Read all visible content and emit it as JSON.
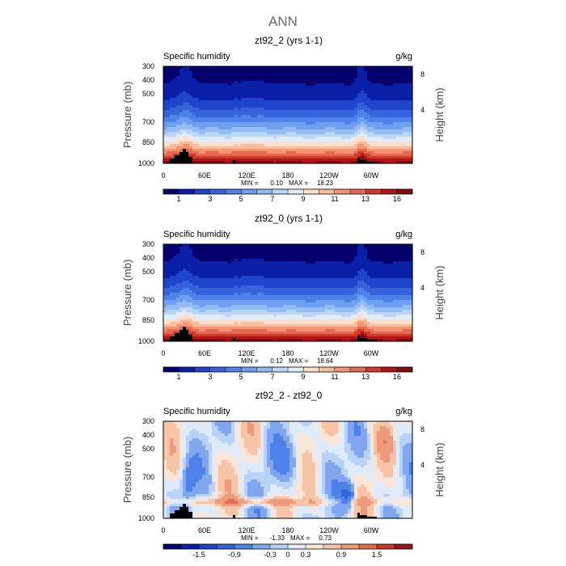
{
  "figure_title": "ANN",
  "chart_data": [
    {
      "type": "heatmap",
      "title": "zt92_2 (yrs 1-1)",
      "variable": "Specific humidity",
      "units": "g/kg",
      "ylabel": "Pressure (mb)",
      "ylabel_right": "Height (km)",
      "yticks": [
        "300",
        "400",
        "500",
        "700",
        "850",
        "1000"
      ],
      "yticks_right": [
        "8",
        "4"
      ],
      "xticks": [
        "0",
        "60E",
        "120E",
        "180",
        "120W",
        "60W"
      ],
      "min_label": "MIN =",
      "min_value": "0.10",
      "max_label": "MAX =",
      "max_value": "18.23",
      "colorbar_labels": [
        "1",
        "3",
        "5",
        "7",
        "9",
        "11",
        "13",
        "16"
      ],
      "colorbar_colors": [
        "#04006e",
        "#0a1fa8",
        "#1f44cc",
        "#3563dc",
        "#4f82e8",
        "#6f9ff0",
        "#93bbf6",
        "#bcd6fa",
        "#e2edfc",
        "#fde0cc",
        "#f8bd9c",
        "#f39474",
        "#e6684e",
        "#d23a28",
        "#b2141a",
        "#820a10"
      ],
      "model": "full"
    },
    {
      "type": "heatmap",
      "title": "zt92_0 (yrs 1-1)",
      "variable": "Specific humidity",
      "units": "g/kg",
      "ylabel": "Pressure (mb)",
      "ylabel_right": "Height (km)",
      "yticks": [
        "300",
        "400",
        "500",
        "700",
        "850",
        "1000"
      ],
      "yticks_right": [
        "8",
        "4"
      ],
      "xticks": [
        "0",
        "60E",
        "120E",
        "180",
        "120W",
        "60W"
      ],
      "min_label": "MIN =",
      "min_value": "0.12",
      "max_label": "MAX =",
      "max_value": "18.64",
      "colorbar_labels": [
        "1",
        "3",
        "5",
        "7",
        "9",
        "11",
        "13",
        "16"
      ],
      "colorbar_colors": [
        "#04006e",
        "#0a1fa8",
        "#1f44cc",
        "#3563dc",
        "#4f82e8",
        "#6f9ff0",
        "#93bbf6",
        "#bcd6fa",
        "#e2edfc",
        "#fde0cc",
        "#f8bd9c",
        "#f39474",
        "#e6684e",
        "#d23a28",
        "#b2141a",
        "#820a10"
      ],
      "model": "full"
    },
    {
      "type": "heatmap",
      "title": "zt92_2 - zt92_0",
      "variable": "Specific humidity",
      "units": "g/kg",
      "ylabel": "Pressure (mb)",
      "ylabel_right": "Height (km)",
      "yticks": [
        "300",
        "400",
        "500",
        "700",
        "850",
        "1000"
      ],
      "yticks_right": [
        "8",
        "4"
      ],
      "xticks": [
        "0",
        "60E",
        "120E",
        "180",
        "120W",
        "60W"
      ],
      "min_label": "MIN =",
      "min_value": "-1.33",
      "max_label": "MAX =",
      "max_value": "0.73",
      "colorbar_labels": [
        "-1.5",
        "-0.9",
        "-0.3",
        "0",
        "0.3",
        "0.9",
        "1.5"
      ],
      "colorbar_colors": [
        "#04006e",
        "#0a1fa8",
        "#1f44cc",
        "#3563dc",
        "#4f82e8",
        "#7fa6ee",
        "#b9d2f8",
        "#dfeafb",
        "#fbe5d8",
        "#f8c4a8",
        "#f09a7c",
        "#e26a50",
        "#c83a2a",
        "#9c1418"
      ],
      "model": "diff"
    }
  ]
}
